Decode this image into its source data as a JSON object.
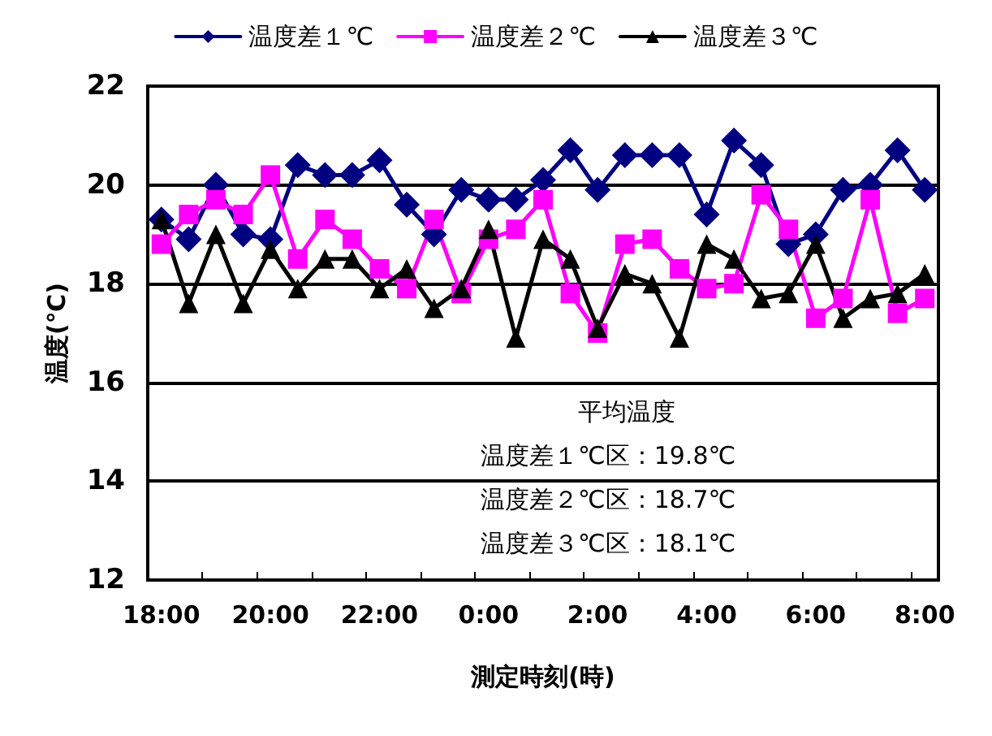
{
  "chart_data": {
    "type": "line",
    "xlabel": "測定時刻(時)",
    "ylabel": "温度(℃)",
    "categories": [
      "18:00",
      null,
      null,
      null,
      "20:00",
      null,
      null,
      null,
      "22:00",
      null,
      null,
      null,
      "0:00",
      null,
      null,
      null,
      "2:00",
      null,
      null,
      null,
      "4:00",
      null,
      null,
      null,
      "6:00",
      null,
      null,
      null,
      "8:00"
    ],
    "ylim": [
      12,
      22
    ],
    "yticks": [
      12,
      14,
      16,
      18,
      20,
      22
    ],
    "grid": "y",
    "legend": "top",
    "series": [
      {
        "name": "温度差１℃",
        "color": "#000080",
        "marker": "diamond",
        "values": [
          19.3,
          18.9,
          20.0,
          19.0,
          18.9,
          20.4,
          20.2,
          20.2,
          20.5,
          19.6,
          19.0,
          19.9,
          19.7,
          19.7,
          20.1,
          20.7,
          19.9,
          20.6,
          20.6,
          20.6,
          19.4,
          20.9,
          20.4,
          18.8,
          19.0,
          19.9,
          20.0,
          20.7,
          19.9
        ]
      },
      {
        "name": "温度差２℃",
        "color": "#ff00ff",
        "marker": "square",
        "values": [
          18.8,
          19.4,
          19.7,
          19.4,
          20.2,
          18.5,
          19.3,
          18.9,
          18.3,
          17.9,
          19.3,
          17.8,
          18.9,
          19.1,
          19.7,
          17.8,
          17.0,
          18.8,
          18.9,
          18.3,
          17.9,
          18.0,
          19.8,
          19.1,
          17.3,
          17.7,
          19.7,
          17.4,
          17.7
        ]
      },
      {
        "name": "温度差３℃",
        "color": "#000000",
        "marker": "triangle",
        "values": [
          19.3,
          17.6,
          19.0,
          17.6,
          18.7,
          17.9,
          18.5,
          18.5,
          17.9,
          18.3,
          17.5,
          17.9,
          19.1,
          16.9,
          18.9,
          18.5,
          17.1,
          18.2,
          18.0,
          16.9,
          18.8,
          18.5,
          17.7,
          17.8,
          18.8,
          17.3,
          17.7,
          17.8,
          18.2
        ]
      }
    ],
    "annotations": [
      "平均温度",
      "温度差１℃区：19.8℃",
      "温度差２℃区：18.7℃",
      "温度差３℃区：18.1℃"
    ]
  }
}
